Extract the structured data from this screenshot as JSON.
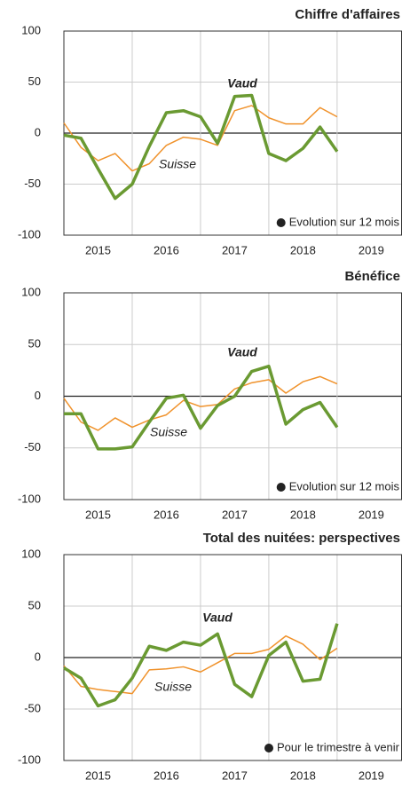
{
  "chart_data": [
    {
      "type": "line",
      "title": "Chiffre d'affaires",
      "x": [
        2015,
        2015.25,
        2015.5,
        2015.75,
        2016,
        2016.25,
        2016.5,
        2016.75,
        2017,
        2017.25,
        2017.5,
        2017.75,
        2018,
        2018.25,
        2018.5,
        2018.75,
        2019
      ],
      "series": [
        {
          "name": "Suisse",
          "color": "#f0922b",
          "values": [
            10,
            -14,
            -27,
            -20,
            -37,
            -30,
            -12,
            -4,
            -6,
            -12,
            22,
            27,
            15,
            9,
            9,
            25,
            16
          ]
        },
        {
          "name": "Vaud",
          "color": "#6a9a32",
          "values": [
            -2,
            -5,
            -35,
            -64,
            -50,
            -13,
            20,
            22,
            16,
            -10,
            36,
            37,
            -20,
            -27,
            -15,
            6,
            -18
          ]
        }
      ],
      "xlim": [
        2015,
        2019.95
      ],
      "ylim": [
        -100,
        100
      ],
      "yticks": [
        -100,
        -50,
        0,
        50,
        100
      ],
      "xticks": [
        {
          "value": 2015.5,
          "label": "2015"
        },
        {
          "value": 2016.5,
          "label": "2016"
        },
        {
          "value": 2017.5,
          "label": "2017"
        },
        {
          "value": 2018.5,
          "label": "2018"
        },
        {
          "value": 2019.5,
          "label": "2019"
        }
      ],
      "xgrid": [
        2016,
        2017,
        2018,
        2019
      ],
      "grid": true,
      "note": "Evolution sur 12 mois"
    },
    {
      "type": "line",
      "title": "Bénéfice",
      "x": [
        2015,
        2015.25,
        2015.5,
        2015.75,
        2016,
        2016.25,
        2016.5,
        2016.75,
        2017,
        2017.25,
        2017.5,
        2017.75,
        2018,
        2018.25,
        2018.5,
        2018.75,
        2019
      ],
      "series": [
        {
          "name": "Suisse",
          "color": "#f0922b",
          "values": [
            -2,
            -25,
            -33,
            -21,
            -30,
            -23,
            -18,
            -4,
            -10,
            -8,
            7,
            13,
            16,
            3,
            14,
            19,
            12
          ]
        },
        {
          "name": "Vaud",
          "color": "#6a9a32",
          "values": [
            -17,
            -17,
            -51,
            -51,
            -49,
            -25,
            -2,
            1,
            -31,
            -9,
            0,
            24,
            29,
            -27,
            -13,
            -6,
            -30
          ]
        }
      ],
      "xlim": [
        2015,
        2019.95
      ],
      "ylim": [
        -100,
        100
      ],
      "yticks": [
        -100,
        -50,
        0,
        50,
        100
      ],
      "xticks": [
        {
          "value": 2015.5,
          "label": "2015"
        },
        {
          "value": 2016.5,
          "label": "2016"
        },
        {
          "value": 2017.5,
          "label": "2017"
        },
        {
          "value": 2018.5,
          "label": "2018"
        },
        {
          "value": 2019.5,
          "label": "2019"
        }
      ],
      "xgrid": [
        2016,
        2017,
        2018,
        2019
      ],
      "grid": true,
      "note": "Evolution sur 12 mois"
    },
    {
      "type": "line",
      "title": "Total des nuitées: perspectives",
      "x": [
        2015,
        2015.25,
        2015.5,
        2015.75,
        2016,
        2016.25,
        2016.5,
        2016.75,
        2017,
        2017.25,
        2017.5,
        2017.75,
        2018,
        2018.25,
        2018.5,
        2018.75,
        2019
      ],
      "series": [
        {
          "name": "Suisse",
          "color": "#f0922b",
          "values": [
            -8,
            -28,
            -31,
            -33,
            -35,
            -12,
            -11,
            -9,
            -14,
            -5,
            4,
            4,
            8,
            21,
            13,
            -2,
            9
          ]
        },
        {
          "name": "Vaud",
          "color": "#6a9a32",
          "values": [
            -10,
            -20,
            -47,
            -41,
            -20,
            11,
            7,
            15,
            12,
            23,
            -26,
            -38,
            2,
            15,
            -23,
            -21,
            33
          ]
        }
      ],
      "xlim": [
        2015,
        2019.95
      ],
      "ylim": [
        -100,
        100
      ],
      "yticks": [
        -100,
        -50,
        0,
        50,
        100
      ],
      "xticks": [
        {
          "value": 2015.5,
          "label": "2015"
        },
        {
          "value": 2016.5,
          "label": "2016"
        },
        {
          "value": 2017.5,
          "label": "2017"
        },
        {
          "value": 2018.5,
          "label": "2018"
        },
        {
          "value": 2019.5,
          "label": "2019"
        }
      ],
      "xgrid": [
        2016,
        2017,
        2018,
        2019
      ],
      "grid": true,
      "note": "Pour le trimestre à venir"
    }
  ]
}
